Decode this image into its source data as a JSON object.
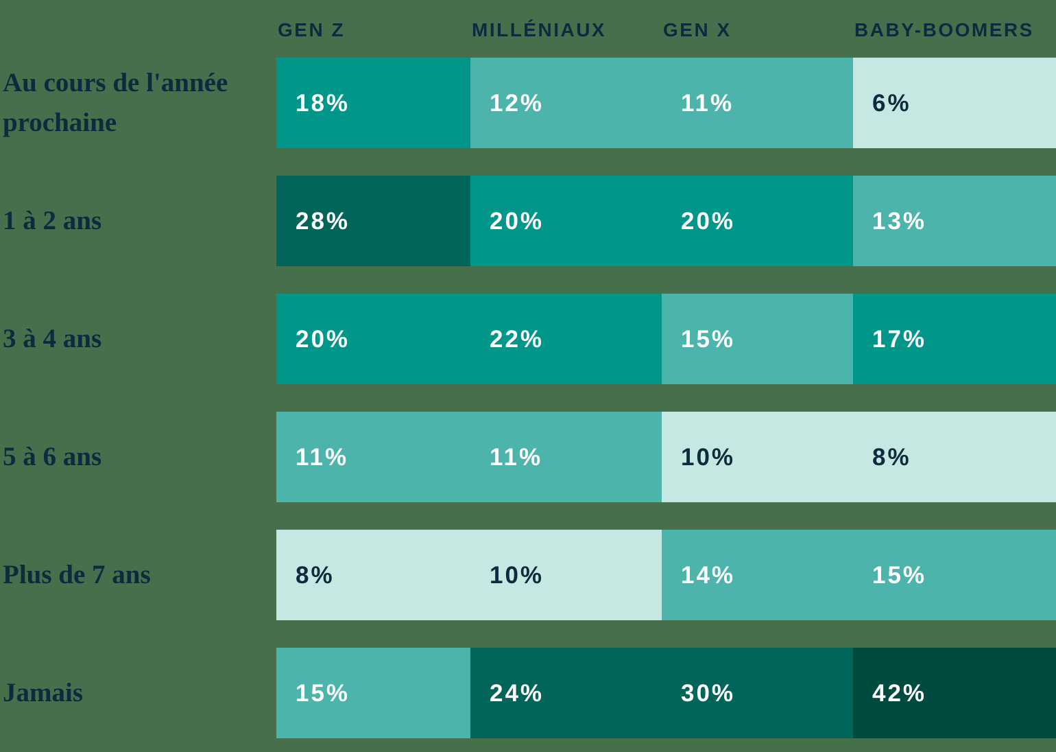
{
  "chart_data": {
    "type": "heatmap",
    "title": "",
    "unit": "%",
    "columns": [
      "GEN Z",
      "MILLÉNIAUX",
      "GEN X",
      "BABY-BOOMERS"
    ],
    "rows": [
      "Au cours de l'année prochaine",
      "1 à 2 ans",
      "3 à 4 ans",
      "5 à 6 ans",
      "Plus de 7 ans",
      "Jamais"
    ],
    "values": [
      [
        18,
        12,
        11,
        6
      ],
      [
        28,
        20,
        20,
        13
      ],
      [
        20,
        22,
        15,
        17
      ],
      [
        11,
        11,
        10,
        8
      ],
      [
        8,
        10,
        14,
        15
      ],
      [
        15,
        24,
        30,
        42
      ]
    ],
    "color_scale": [
      {
        "max": 10,
        "bg": "#C6E8E2",
        "text": "#0D2B3E"
      },
      {
        "max": 15,
        "bg": "#4CB4AA",
        "text": "#FFFFFF"
      },
      {
        "max": 22,
        "bg": "#00968A",
        "text": "#FFFFFF"
      },
      {
        "max": 30,
        "bg": "#02655A",
        "text": "#FFFFFF"
      },
      {
        "max": 100,
        "bg": "#004B3F",
        "text": "#FFFFFF"
      }
    ],
    "layout": {
      "background": "#46704C",
      "header_text_color": "#0D2B3E",
      "label_text_color": "#0D2B3E",
      "legend": "none",
      "grid": "off"
    }
  }
}
